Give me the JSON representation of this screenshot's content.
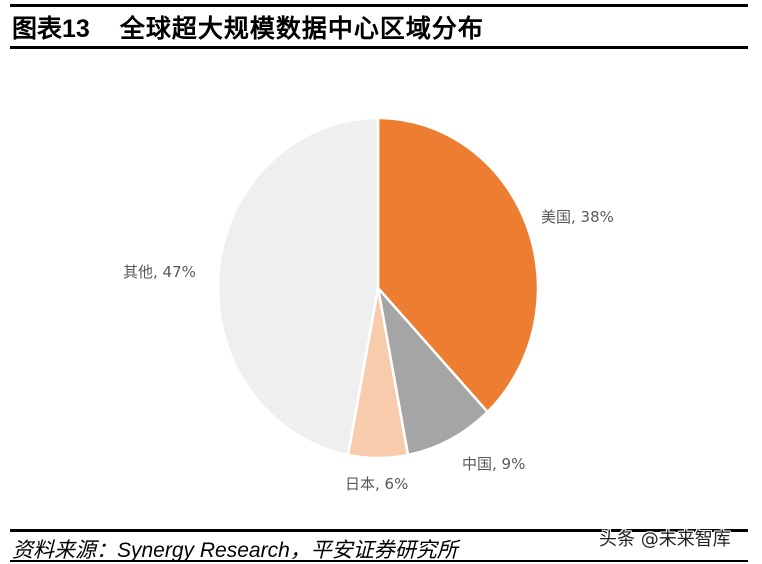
{
  "header": {
    "figure_label": "图表13",
    "title": "全球超大规模数据中心区域分布"
  },
  "chart_data": {
    "type": "pie",
    "title": "全球超大规模数据中心区域分布",
    "start_angle": "12 o'clock",
    "direction": "clockwise",
    "categories": [
      "美国",
      "中国",
      "日本",
      "其他"
    ],
    "values": [
      38,
      9,
      6,
      47
    ],
    "unit": "%",
    "colors": [
      "#ED7D31",
      "#A5A5A5",
      "#F8CBAD",
      "#EFEFEF"
    ],
    "labels": [
      "美国, 38%",
      "中国, 9%",
      "日本, 6%",
      "其他, 47%"
    ],
    "legend": "none (data labels outside slices)"
  },
  "footer": {
    "source": "资料来源：Synergy Research，平安证券研究所",
    "watermark": "头条 @未来智库"
  }
}
